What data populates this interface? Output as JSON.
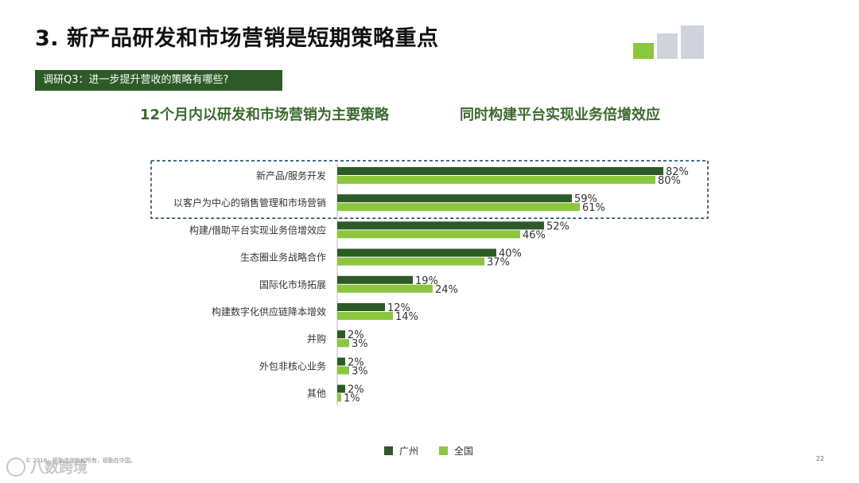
{
  "header": {
    "title": "3. 新产品研发和市场营销是短期策略重点",
    "question": "调研Q3：进一步提升营收的策略有哪些?",
    "subtitle_left": "12个月内以研发和市场营销为主要策略",
    "subtitle_right": "同时构建平台实现业务倍增效应"
  },
  "colors": {
    "series_guangzhou": "#2d5a27",
    "series_national": "#8cc63f",
    "highlight_box": "#1f3b5a"
  },
  "chart_data": {
    "type": "bar",
    "orientation": "horizontal",
    "categories": [
      "新产品/服务开发",
      "以客户为中心的销售管理和市场营销",
      "构建/借助平台实现业务倍增效应",
      "生态圈业务战略合作",
      "国际化市场拓展",
      "构建数字化供应链降本增效",
      "并购",
      "外包非核心业务",
      "其他"
    ],
    "series": [
      {
        "name": "广州",
        "values": [
          82,
          59,
          52,
          40,
          19,
          12,
          2,
          2,
          2
        ]
      },
      {
        "name": "全国",
        "values": [
          80,
          61,
          46,
          37,
          24,
          14,
          3,
          3,
          1
        ]
      }
    ],
    "value_suffix": "%",
    "xlim": [
      0,
      100
    ],
    "grid": false,
    "legend_position": "bottom",
    "highlighted_categories": [
      0,
      1
    ]
  },
  "footer": {
    "source": "© 2018。德勤咨询版权所有，德勤在中国。",
    "page": "22",
    "watermark": "八数跨境"
  }
}
